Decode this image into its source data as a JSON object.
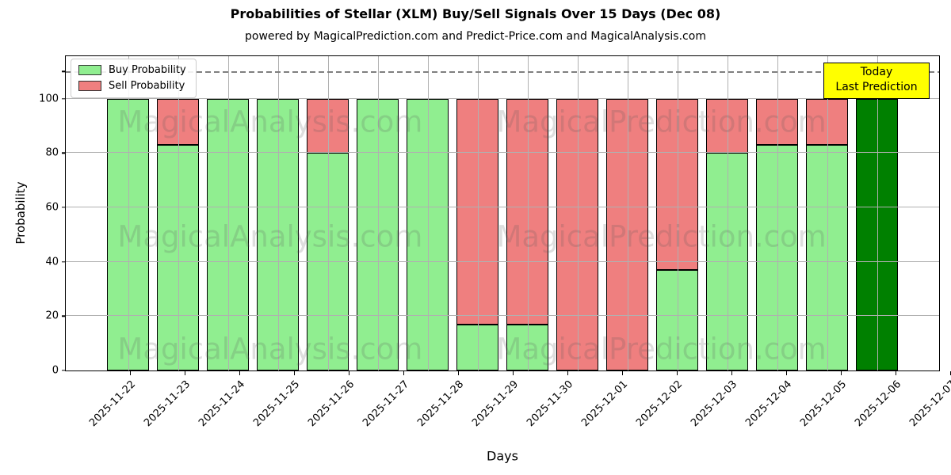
{
  "title": "Probabilities of Stellar (XLM) Buy/Sell Signals Over 15 Days (Dec 08)",
  "subtitle": "powered by MagicalPrediction.com and Predict-Price.com and MagicalAnalysis.com",
  "legend": [
    {
      "label": "Buy Probability",
      "color": "#90ee90"
    },
    {
      "label": "Sell Probability",
      "color": "#ef7f7f"
    }
  ],
  "annotation": {
    "line1": "Today",
    "line2": "Last Prediction",
    "bg": "#ffff00",
    "border": "#000000"
  },
  "watermarks": {
    "texts": [
      "MagicalAnalysis.com",
      "MagicalPrediction.com"
    ],
    "cols_pct": [
      23.4,
      68.2
    ],
    "rows_pct": [
      21.0,
      57.4,
      93.2
    ]
  },
  "chart_data": {
    "type": "bar",
    "stacked": true,
    "title": "Probabilities of Stellar (XLM) Buy/Sell Signals Over 15 Days (Dec 08)",
    "xlabel": "Days",
    "ylabel": "Probability",
    "categories": [
      "2025-11-22",
      "2025-11-23",
      "2025-11-24",
      "2025-11-25",
      "2025-11-26",
      "2025-11-27",
      "2025-11-28",
      "2025-11-29",
      "2025-11-30",
      "2025-12-01",
      "2025-12-02",
      "2025-12-03",
      "2025-12-04",
      "2025-12-05",
      "2025-12-06",
      "2025-12-07"
    ],
    "series": [
      {
        "name": "Buy Probability",
        "color": "#90ee90",
        "values": [
          100,
          83,
          100,
          100,
          80,
          100,
          100,
          17,
          17,
          0,
          0,
          37,
          80,
          83,
          83,
          100
        ]
      },
      {
        "name": "Sell Probability",
        "color": "#ef7f7f",
        "values": [
          0,
          17,
          0,
          0,
          20,
          0,
          0,
          83,
          83,
          100,
          100,
          63,
          20,
          17,
          17,
          0
        ]
      }
    ],
    "today_index": 15,
    "today_color": "#008000",
    "bar_edge_color": "#000000",
    "yticks": [
      0,
      20,
      40,
      60,
      80,
      100
    ],
    "ylim": [
      0,
      115.6
    ],
    "dashed_line_y": 110,
    "grid": true,
    "gridline_color": "#b0b0b0",
    "legend_position": "upper-left"
  }
}
